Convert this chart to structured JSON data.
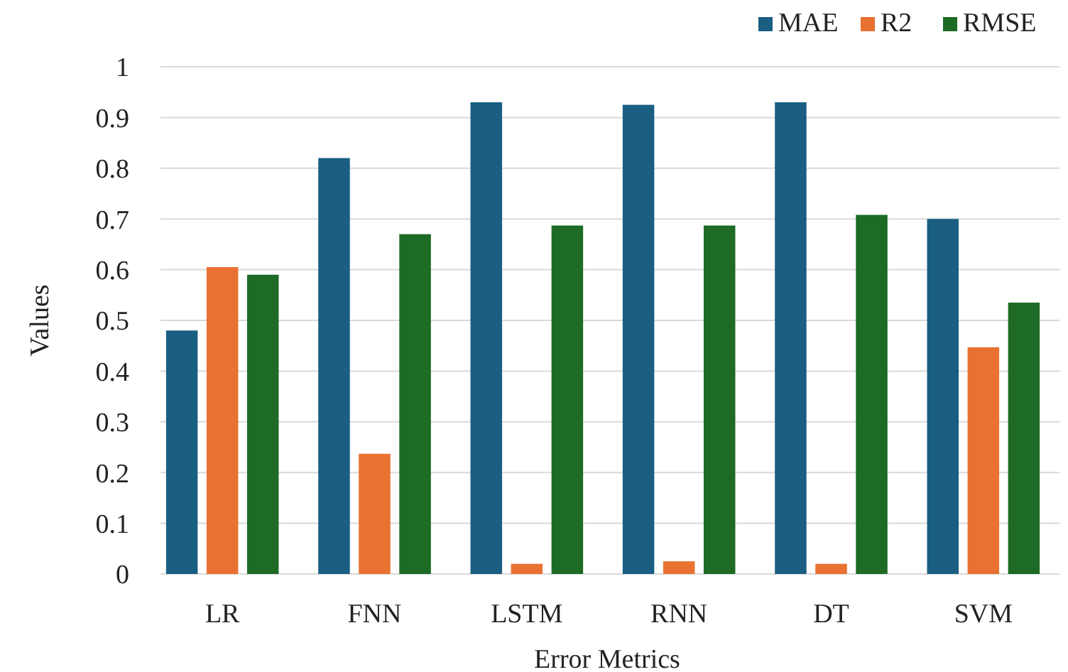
{
  "chart_data": {
    "type": "bar",
    "xlabel": "Error Metrics",
    "ylabel": "Values",
    "categories": [
      "LR",
      "FNN",
      "LSTM",
      "RNN",
      "DT",
      "SVM"
    ],
    "series": [
      {
        "name": "MAE",
        "color": "#1a5e82",
        "values": [
          0.48,
          0.82,
          0.93,
          0.925,
          0.93,
          0.7
        ]
      },
      {
        "name": "R2",
        "color": "#e97132",
        "values": [
          0.605,
          0.237,
          0.02,
          0.025,
          0.02,
          0.447
        ]
      },
      {
        "name": "RMSE",
        "color": "#1d6b24",
        "values": [
          0.59,
          0.67,
          0.687,
          0.687,
          0.708,
          0.535
        ]
      }
    ],
    "ylim": [
      0,
      1
    ],
    "yticks": [
      0,
      0.1,
      0.2,
      0.3,
      0.4,
      0.5,
      0.6,
      0.7,
      0.8,
      0.9,
      1
    ],
    "grid": "y",
    "legend": "top right"
  }
}
